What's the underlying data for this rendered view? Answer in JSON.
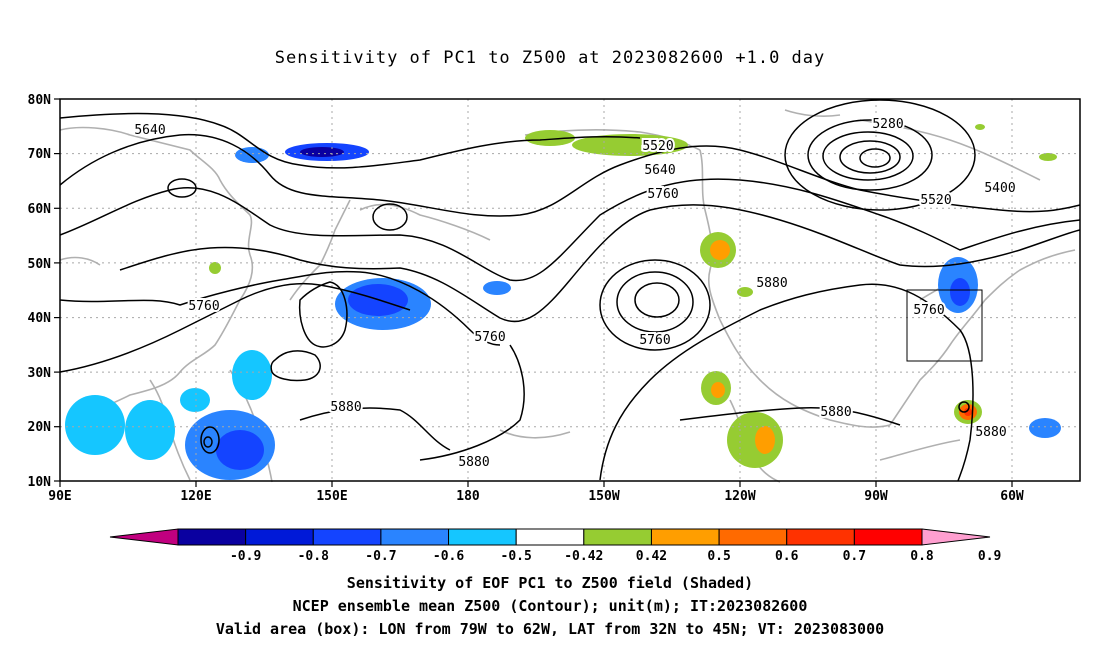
{
  "title": "Sensitivity of PC1 to Z500 at 2023082600 +1.0 day",
  "map": {
    "lat_labels": [
      "80N",
      "70N",
      "60N",
      "50N",
      "40N",
      "30N",
      "20N",
      "10N"
    ],
    "lon_labels": [
      "90E",
      "120E",
      "150E",
      "180",
      "150W",
      "120W",
      "90W",
      "60W"
    ],
    "contour_labels": [
      "5640",
      "5520",
      "5280",
      "5400",
      "5640",
      "5520",
      "5760",
      "5760",
      "5880",
      "5760",
      "5760",
      "5760",
      "5880",
      "5880",
      "5880",
      "5880"
    ],
    "box_label": "5760"
  },
  "colorbar": {
    "tick_labels": [
      "-0.9",
      "-0.8",
      "-0.7",
      "-0.6",
      "-0.5",
      "-0.42",
      "0.42",
      "0.5",
      "0.6",
      "0.7",
      "0.8",
      "0.9"
    ],
    "colors": [
      "#c1007f",
      "#0a00a0",
      "#0019d8",
      "#1444ff",
      "#2a84ff",
      "#15c6ff",
      "#ffffff",
      "#96cc32",
      "#ff9e00",
      "#ff6a00",
      "#ff3200",
      "#ff0000",
      "#ff9fd0"
    ]
  },
  "footer": {
    "line1": "Sensitivity of EOF PC1 to Z500 field (Shaded)",
    "line2": "NCEP ensemble mean Z500 (Contour); unit(m); IT:2023082600",
    "line3": "Valid area (box): LON from 79W to 62W, LAT from 32N to 45N; VT: 2023083000"
  }
}
